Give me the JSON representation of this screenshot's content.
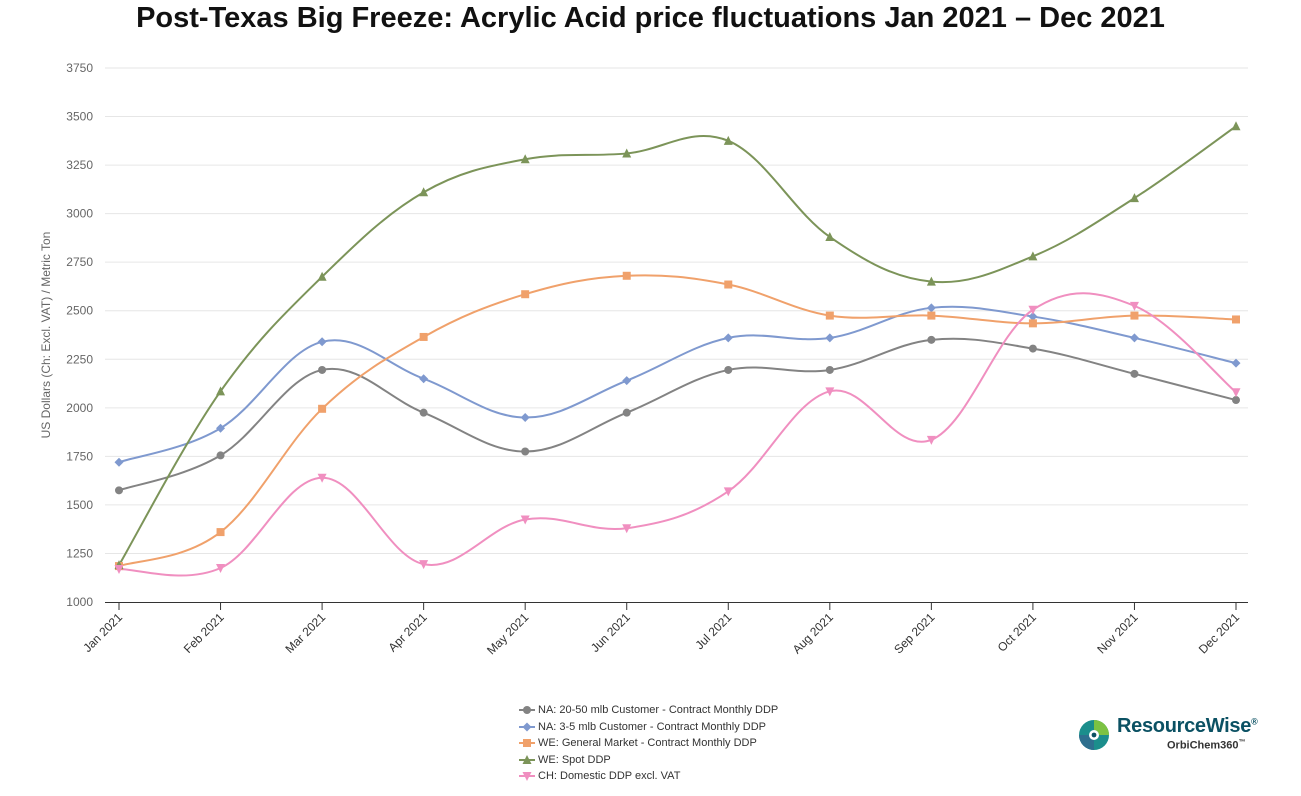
{
  "title": "Post-Texas Big Freeze: Acrylic Acid price fluctuations Jan 2021 – Dec 2021",
  "chart_data": {
    "type": "line",
    "title": "Post-Texas Big Freeze: Acrylic Acid price fluctuations Jan 2021 – Dec 2021",
    "xlabel": "",
    "ylabel": "US Dollars (Ch: Excl. VAT) / Metric Ton",
    "ylim": [
      1000,
      3750
    ],
    "yticks": [
      "1000",
      "1250",
      "1500",
      "1750",
      "2000",
      "2250",
      "2500",
      "2750",
      "3000",
      "3250",
      "3500",
      "3750"
    ],
    "categories": [
      "Jan 2021",
      "Feb 2021",
      "Mar 2021",
      "Apr 2021",
      "May 2021",
      "Jun 2021",
      "Jul 2021",
      "Aug 2021",
      "Sep 2021",
      "Oct 2021",
      "Nov 2021",
      "Dec 2021"
    ],
    "grid": true,
    "legend_position": "bottom",
    "series": [
      {
        "name": "NA: 20-50 mlb Customer - Contract Monthly DDP",
        "color": "#838383",
        "marker": "circle",
        "values": [
          1575,
          1755,
          2195,
          1975,
          1775,
          1975,
          2195,
          2195,
          2350,
          2305,
          2175,
          2040
        ]
      },
      {
        "name": "NA: 3-5 mlb Customer - Contract Monthly DDP",
        "color": "#7f99cf",
        "marker": "diamond",
        "values": [
          1720,
          1895,
          2340,
          2150,
          1950,
          2140,
          2360,
          2360,
          2515,
          2470,
          2360,
          2230
        ]
      },
      {
        "name": "WE: General Market - Contract Monthly DDP",
        "color": "#f0a16b",
        "marker": "square",
        "values": [
          1185,
          1360,
          1995,
          2365,
          2585,
          2680,
          2635,
          2475,
          2475,
          2435,
          2475,
          2455
        ]
      },
      {
        "name": "WE: Spot DDP",
        "color": "#7c9459",
        "marker": "triangle",
        "values": [
          1190,
          2085,
          2675,
          3110,
          3280,
          3310,
          3375,
          2880,
          2650,
          2780,
          3080,
          3450
        ]
      },
      {
        "name": "CH: Domestic DDP excl. VAT",
        "color": "#f08fc0",
        "marker": "triangle-down",
        "values": [
          1170,
          1175,
          1640,
          1195,
          1425,
          1380,
          1570,
          2085,
          1835,
          2505,
          2525,
          2080
        ]
      }
    ]
  },
  "logo": {
    "main_text": "ResourceWise",
    "registered": "®",
    "sub_text": "OrbiChem360",
    "trademark": "™",
    "colors": [
      "#1b8e8c",
      "#2e6f8e",
      "#7cc243",
      "#0b5163"
    ]
  }
}
